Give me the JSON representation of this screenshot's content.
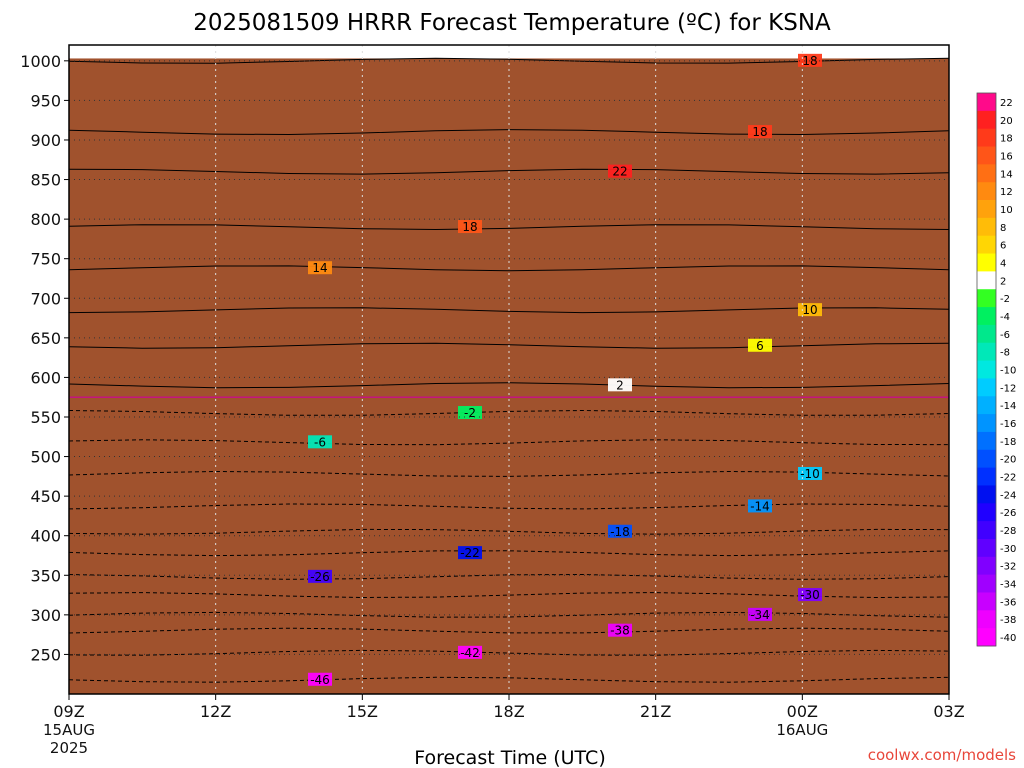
{
  "chart_data": {
    "type": "heatmap",
    "title": "2025081509 HRRR Forecast Temperature (ºC) for KSNA",
    "xlabel": "Forecast Time (UTC)",
    "ylabel": "",
    "x_ticks": [
      {
        "hours": 0,
        "label": "09Z",
        "sub1": "15AUG",
        "sub2": "2025"
      },
      {
        "hours": 3,
        "label": "12Z",
        "sub1": "",
        "sub2": ""
      },
      {
        "hours": 6,
        "label": "15Z",
        "sub1": "",
        "sub2": ""
      },
      {
        "hours": 9,
        "label": "18Z",
        "sub1": "",
        "sub2": ""
      },
      {
        "hours": 12,
        "label": "21Z",
        "sub1": "",
        "sub2": ""
      },
      {
        "hours": 15,
        "label": "00Z",
        "sub1": "16AUG",
        "sub2": ""
      },
      {
        "hours": 18,
        "label": "03Z",
        "sub1": "",
        "sub2": ""
      }
    ],
    "y_ticks": [
      "250",
      "300",
      "350",
      "400",
      "450",
      "500",
      "550",
      "600",
      "650",
      "700",
      "750",
      "800",
      "850",
      "900",
      "950",
      "1000"
    ],
    "y_range_hpa": [
      1020,
      200
    ],
    "colorbar_labels": [
      "22",
      "20",
      "18",
      "16",
      "14",
      "12",
      "10",
      "8",
      "6",
      "4",
      "2",
      "-2",
      "-4",
      "-6",
      "-8",
      "-10",
      "-12",
      "-14",
      "-16",
      "-18",
      "-20",
      "-22",
      "-24",
      "-26",
      "-28",
      "-30",
      "-32",
      "-34",
      "-36",
      "-38",
      "-40"
    ],
    "colorbar_colors": [
      "#ff0a8a",
      "#ff2020",
      "#ff3a1a",
      "#ff5518",
      "#ff6f14",
      "#ff8a10",
      "#ffa20c",
      "#ffbc08",
      "#ffd604",
      "#ffff00",
      "#ffffff",
      "#33ff22",
      "#00f060",
      "#00e88c",
      "#00e8b8",
      "#00e8e0",
      "#00ccff",
      "#00b0ff",
      "#0094ff",
      "#0070ff",
      "#0050ff",
      "#0030ff",
      "#0010f0",
      "#2000ff",
      "#4000ff",
      "#6000ff",
      "#8000ff",
      "#a000ff",
      "#c800ff",
      "#ee00ff",
      "#ff00ff"
    ],
    "temperature_profile": [
      {
        "p": 200,
        "t": -48
      },
      {
        "p": 220,
        "t": -46
      },
      {
        "p": 250,
        "t": -43
      },
      {
        "p": 280,
        "t": -38
      },
      {
        "p": 300,
        "t": -35
      },
      {
        "p": 330,
        "t": -30
      },
      {
        "p": 350,
        "t": -27
      },
      {
        "p": 380,
        "t": -22
      },
      {
        "p": 400,
        "t": -19
      },
      {
        "p": 430,
        "t": -15
      },
      {
        "p": 460,
        "t": -12
      },
      {
        "p": 490,
        "t": -9
      },
      {
        "p": 520,
        "t": -6
      },
      {
        "p": 550,
        "t": -3
      },
      {
        "p": 570,
        "t": 0
      },
      {
        "p": 600,
        "t": 2
      },
      {
        "p": 650,
        "t": 6
      },
      {
        "p": 700,
        "t": 10
      },
      {
        "p": 750,
        "t": 14
      },
      {
        "p": 800,
        "t": 18
      },
      {
        "p": 850,
        "t": 21
      },
      {
        "p": 900,
        "t": 20
      },
      {
        "p": 950,
        "t": 19
      },
      {
        "p": 1000,
        "t": 18
      }
    ],
    "isotherms": [
      {
        "label": "-46",
        "p": 218,
        "dashed": true
      },
      {
        "label": "-42",
        "p": 252,
        "dashed": true
      },
      {
        "label": "-38",
        "p": 280,
        "dashed": true
      },
      {
        "label": "-34",
        "p": 300,
        "dashed": true
      },
      {
        "label": "-30",
        "p": 325,
        "dashed": true
      },
      {
        "label": "-26",
        "p": 348,
        "dashed": true
      },
      {
        "label": "-22",
        "p": 378,
        "dashed": true
      },
      {
        "label": "-18",
        "p": 405,
        "dashed": true
      },
      {
        "label": "-14",
        "p": 437,
        "dashed": true
      },
      {
        "label": "-10",
        "p": 478,
        "dashed": true
      },
      {
        "label": "-6",
        "p": 518,
        "dashed": true
      },
      {
        "label": "-2",
        "p": 555,
        "dashed": true
      },
      {
        "label": "2",
        "p": 590,
        "dashed": false
      },
      {
        "label": "6",
        "p": 640,
        "dashed": false
      },
      {
        "label": "10",
        "p": 685,
        "dashed": false
      },
      {
        "label": "14",
        "p": 738,
        "dashed": false
      },
      {
        "label": "18",
        "p": 790,
        "dashed": false
      },
      {
        "label": "22",
        "p": 860,
        "dashed": false
      },
      {
        "label": "18",
        "p": 910,
        "dashed": false
      },
      {
        "label": "18",
        "p": 1000,
        "dashed": false
      }
    ]
  },
  "credit": "coolwx.com/models"
}
